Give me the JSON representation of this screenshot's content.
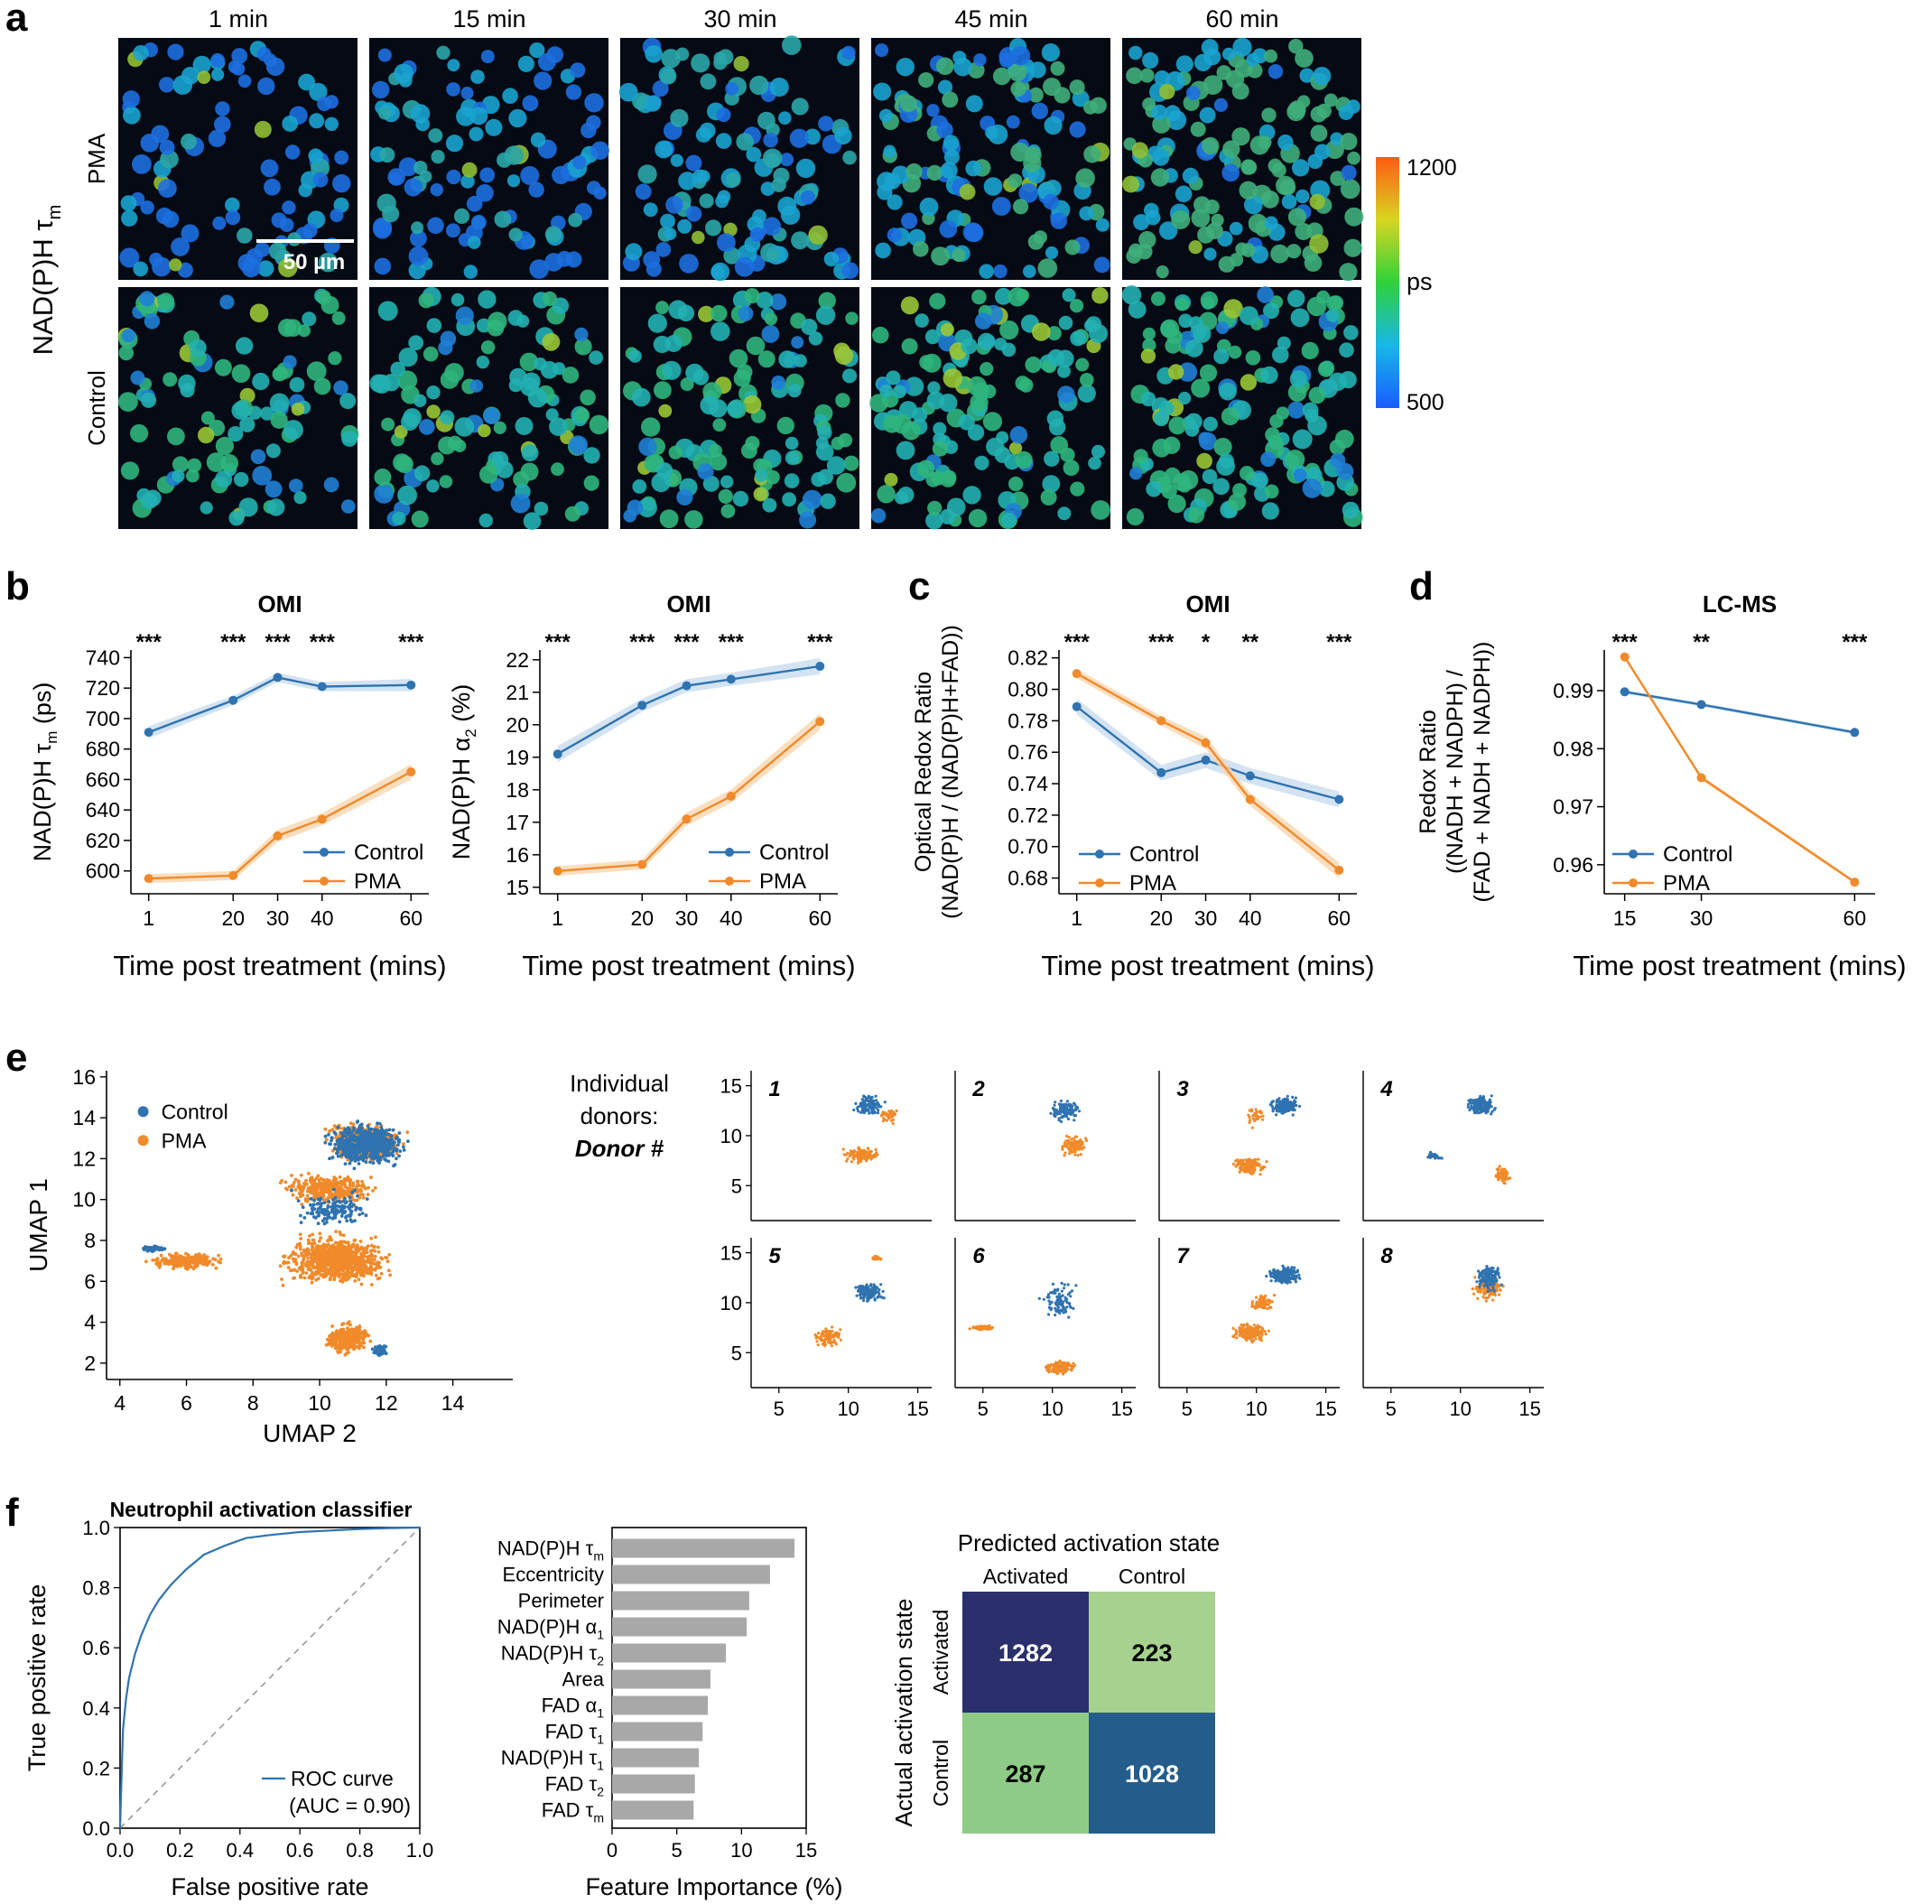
{
  "panel_labels": {
    "a": "a",
    "b": "b",
    "c": "c",
    "d": "d",
    "e": "e",
    "f": "f"
  },
  "colors": {
    "control": "#2f73b0",
    "pma": "#f08a2a",
    "control_band": "#c9dced",
    "pma_band": "#f9d6b0",
    "gray_bar": "#a8a8a8",
    "cm_tp": "#2b2f6b",
    "cm_tn": "#245d8c",
    "cm_fn": "#a7d18f",
    "cm_fp": "#8ecb86"
  },
  "panel_a": {
    "columns": [
      "1 min",
      "15 min",
      "30 min",
      "45 min",
      "60 min"
    ],
    "rows": [
      "PMA",
      "Control"
    ],
    "y_label_main": "NAD(P)H τ",
    "y_label_sub": "m",
    "scale_bar": "50 µm",
    "colorbar": {
      "max": "1200",
      "unit": "ps",
      "min": "500"
    }
  },
  "chart_data": [
    {
      "id": "b1",
      "type": "line",
      "title": "OMI",
      "xlabel": "Time post treatment (mins)",
      "ylabel_main": "NAD(P)H τ",
      "ylabel_sub": "m",
      "ylabel_tail": " (ps)",
      "x": [
        1,
        20,
        30,
        40,
        60
      ],
      "x_ticks": [
        "1",
        "20",
        "30",
        "40",
        "60"
      ],
      "ylim": [
        585,
        745
      ],
      "y_ticks": [
        600,
        620,
        640,
        660,
        680,
        700,
        720,
        740
      ],
      "series": [
        {
          "name": "Control",
          "values": [
            691,
            712,
            727,
            721,
            722
          ],
          "band": [
            4,
            3,
            3,
            3,
            4
          ]
        },
        {
          "name": "PMA",
          "values": [
            595,
            597,
            623,
            634,
            665
          ],
          "band": [
            3,
            3,
            4,
            4,
            5
          ]
        }
      ],
      "sig": [
        "***",
        "***",
        "***",
        "***",
        "***"
      ],
      "legend": [
        "Control",
        "PMA"
      ]
    },
    {
      "id": "b2",
      "type": "line",
      "title": "OMI",
      "xlabel": "Time post treatment (mins)",
      "ylabel_main": "NAD(P)H α",
      "ylabel_sub": "2",
      "ylabel_tail": " (%)",
      "x": [
        1,
        20,
        30,
        40,
        60
      ],
      "x_ticks": [
        "1",
        "20",
        "30",
        "40",
        "60"
      ],
      "ylim": [
        14.8,
        22.3
      ],
      "y_ticks": [
        15,
        16,
        17,
        18,
        19,
        20,
        21,
        22
      ],
      "series": [
        {
          "name": "Control",
          "values": [
            19.1,
            20.6,
            21.2,
            21.4,
            21.8
          ],
          "band": [
            0.25,
            0.2,
            0.2,
            0.2,
            0.25
          ]
        },
        {
          "name": "PMA",
          "values": [
            15.5,
            15.7,
            17.1,
            17.8,
            20.1
          ],
          "band": [
            0.15,
            0.15,
            0.2,
            0.2,
            0.25
          ]
        }
      ],
      "sig": [
        "***",
        "***",
        "***",
        "***",
        "***"
      ],
      "legend": [
        "Control",
        "PMA"
      ]
    },
    {
      "id": "c",
      "type": "line",
      "title": "OMI",
      "xlabel": "Time post treatment (mins)",
      "ylabel_lines": [
        "Optical Redox Ratio",
        "(NAD(P)H / (NAD(P)H+FAD))"
      ],
      "x": [
        1,
        20,
        30,
        40,
        60
      ],
      "x_ticks": [
        "1",
        "20",
        "30",
        "40",
        "60"
      ],
      "ylim": [
        0.67,
        0.825
      ],
      "y_ticks": [
        "0.68",
        "0.70",
        "0.72",
        "0.74",
        "0.76",
        "0.78",
        "0.80",
        "0.82"
      ],
      "series": [
        {
          "name": "Control",
          "values": [
            0.789,
            0.747,
            0.755,
            0.745,
            0.73
          ],
          "band": [
            0.005,
            0.005,
            0.005,
            0.005,
            0.005
          ]
        },
        {
          "name": "PMA",
          "values": [
            0.81,
            0.78,
            0.766,
            0.73,
            0.685
          ],
          "band": [
            0.003,
            0.003,
            0.004,
            0.004,
            0.005
          ]
        }
      ],
      "sig": [
        "***",
        "***",
        "*",
        "**",
        "***"
      ],
      "legend": [
        "Control",
        "PMA"
      ]
    },
    {
      "id": "d",
      "type": "line",
      "title": "LC-MS",
      "xlabel": "Time post treatment (mins)",
      "ylabel_lines": [
        "Redox Ratio",
        "((NADH + NADPH) /",
        "(FAD + NADH + NADPH))"
      ],
      "x": [
        15,
        30,
        60
      ],
      "x_ticks": [
        "15",
        "30",
        "60"
      ],
      "ylim": [
        0.955,
        0.997
      ],
      "y_ticks": [
        "0.96",
        "0.97",
        "0.98",
        "0.99"
      ],
      "series": [
        {
          "name": "Control",
          "values": [
            0.9898,
            0.9876,
            0.9828
          ],
          "band": [
            0.0003,
            0.0003,
            0.0003
          ]
        },
        {
          "name": "PMA",
          "values": [
            0.9958,
            0.975,
            0.957
          ],
          "band": [
            0.0003,
            0.0004,
            0.0003
          ]
        }
      ],
      "sig": [
        "***",
        "**",
        "***"
      ],
      "legend": [
        "Control",
        "PMA"
      ]
    },
    {
      "id": "e_main",
      "type": "scatter",
      "xlabel": "UMAP 2",
      "ylabel": "UMAP 1",
      "xlim": [
        3.6,
        15.8
      ],
      "ylim": [
        1.2,
        16.3
      ],
      "x_ticks": [
        4,
        6,
        8,
        10,
        12,
        14
      ],
      "y_ticks": [
        2,
        4,
        6,
        8,
        10,
        12,
        14,
        16
      ],
      "legend": [
        "Control",
        "PMA"
      ]
    },
    {
      "id": "e_donors",
      "type": "scatter",
      "header_lines": [
        "Individual",
        "donors:",
        "Donor #"
      ],
      "donors": [
        "1",
        "2",
        "3",
        "4",
        "5",
        "6",
        "7",
        "8"
      ],
      "xlim": [
        3,
        16
      ],
      "ylim": [
        1.5,
        16.5
      ],
      "x_ticks": [
        "5",
        "10",
        "15"
      ],
      "y_ticks": [
        "5",
        "10",
        "15"
      ]
    },
    {
      "id": "f_roc",
      "type": "line",
      "title": "Neutrophil activation classifier",
      "xlabel": "False positive rate",
      "ylabel": "True positive rate",
      "x_ticks": [
        "0.0",
        "0.2",
        "0.4",
        "0.6",
        "0.8",
        "1.0"
      ],
      "y_ticks": [
        "0.0",
        "0.2",
        "0.4",
        "0.6",
        "0.8",
        "1.0"
      ],
      "fpr": [
        0,
        0.005,
        0.01,
        0.02,
        0.03,
        0.05,
        0.07,
        0.1,
        0.13,
        0.17,
        0.22,
        0.28,
        0.35,
        0.42,
        0.5,
        0.6,
        0.7,
        0.8,
        0.9,
        1.0
      ],
      "tpr": [
        0,
        0.18,
        0.33,
        0.43,
        0.5,
        0.58,
        0.64,
        0.71,
        0.76,
        0.81,
        0.86,
        0.91,
        0.94,
        0.965,
        0.975,
        0.985,
        0.99,
        0.995,
        0.998,
        1.0
      ],
      "legend": "ROC curve",
      "auc_label": "(AUC = 0.90)"
    },
    {
      "id": "f_importance",
      "type": "bar",
      "xlabel": "Feature Importance (%)",
      "x_ticks": [
        "0",
        "5",
        "10",
        "15"
      ],
      "xlim": [
        0,
        15
      ],
      "features": [
        {
          "main": "NAD(P)H τ",
          "sub": "m",
          "value": 14.1
        },
        {
          "main": "Eccentricity",
          "sub": "",
          "value": 12.2
        },
        {
          "main": "Perimeter",
          "sub": "",
          "value": 10.6
        },
        {
          "main": "NAD(P)H α",
          "sub": "1",
          "value": 10.4
        },
        {
          "main": "NAD(P)H τ",
          "sub": "2",
          "value": 8.8
        },
        {
          "main": "Area",
          "sub": "",
          "value": 7.6
        },
        {
          "main": "FAD α",
          "sub": "1",
          "value": 7.4
        },
        {
          "main": "FAD τ",
          "sub": "1",
          "value": 7.0
        },
        {
          "main": "NAD(P)H τ",
          "sub": "1",
          "value": 6.7
        },
        {
          "main": "FAD τ",
          "sub": "2",
          "value": 6.4
        },
        {
          "main": "FAD τ",
          "sub": "m",
          "value": 6.3
        }
      ]
    },
    {
      "id": "f_confusion",
      "type": "heatmap",
      "title": "Predicted activation state",
      "col_labels": [
        "Activated",
        "Control"
      ],
      "row_title": "Actual activation state",
      "row_labels": [
        "Activated",
        "Control"
      ],
      "values": [
        [
          "1282",
          "223"
        ],
        [
          "287",
          "1028"
        ]
      ]
    }
  ]
}
